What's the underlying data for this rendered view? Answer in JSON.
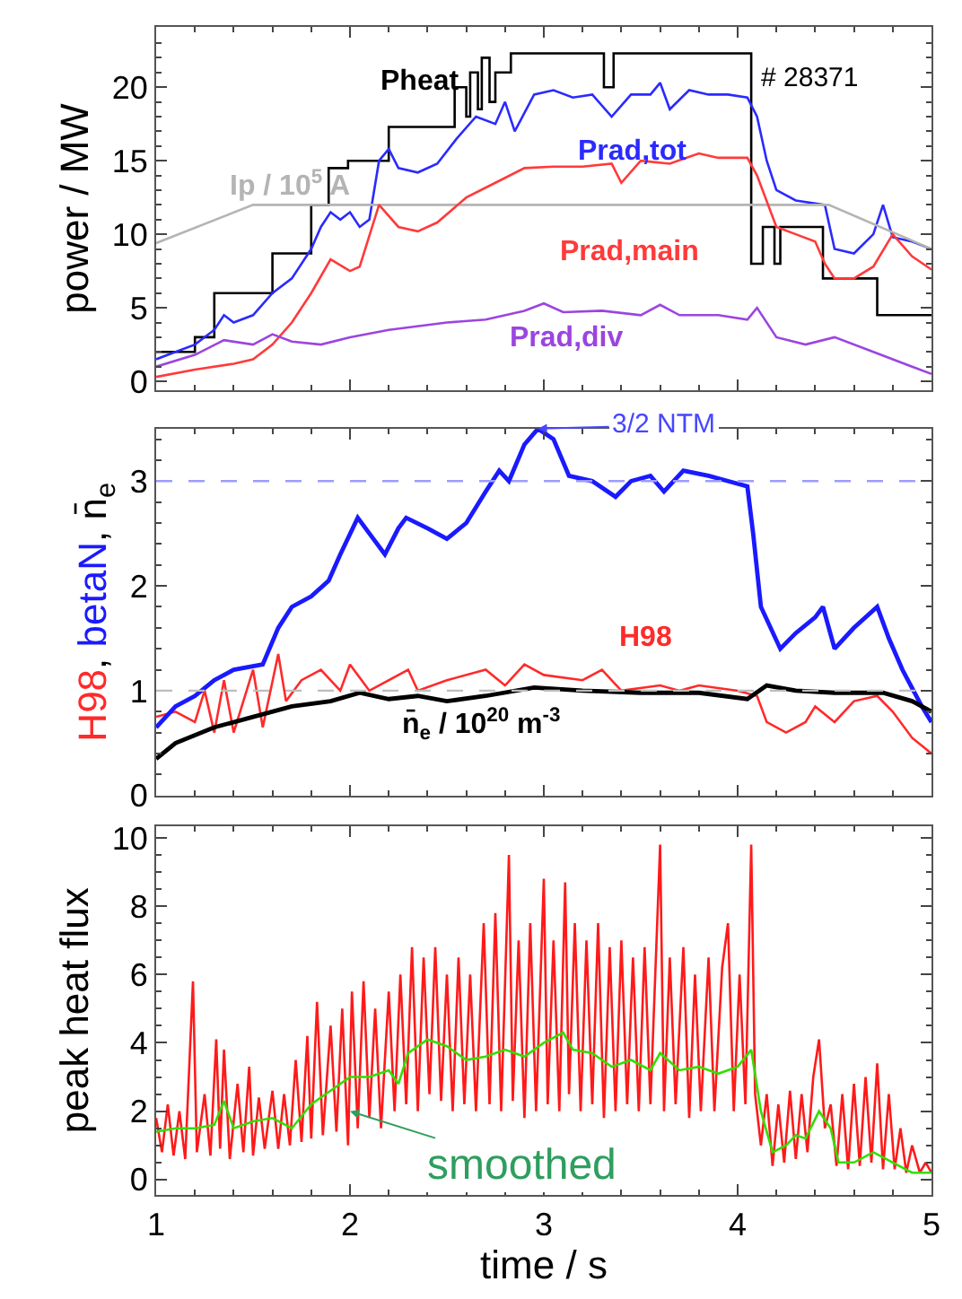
{
  "chart_data": [
    {
      "type": "line",
      "xlim": [
        1,
        5
      ],
      "xticks": [
        1,
        2,
        3,
        4,
        5
      ],
      "ylim": [
        -0.6,
        24.1
      ],
      "yticks": [
        0,
        5,
        10,
        15,
        20
      ],
      "ylabel": "power / MW",
      "tick_labels": "y",
      "annotations": [
        "# 28371"
      ],
      "series": [
        {
          "name": "Pheat",
          "type": "step",
          "color": "#000000",
          "x": [
            1.0,
            1.2,
            1.3,
            1.6,
            1.8,
            1.89,
            1.99,
            2.2,
            2.54,
            2.6,
            2.62,
            2.66,
            2.68,
            2.72,
            2.75,
            2.83,
            3.31,
            3.36,
            4.07,
            4.1,
            4.13,
            4.19,
            4.22,
            4.44,
            4.72,
            5.0
          ],
          "values": [
            2,
            3,
            6,
            8.7,
            12,
            14.5,
            15,
            17.3,
            20,
            18,
            21,
            18.5,
            22,
            19,
            21,
            22.3,
            20,
            22.3,
            8,
            8,
            10.5,
            8,
            10.5,
            7,
            4.5,
            4.5
          ]
        },
        {
          "name": "Prad,tot",
          "color": "#2a2aff",
          "x": [
            1.0,
            1.1,
            1.2,
            1.3,
            1.35,
            1.4,
            1.5,
            1.6,
            1.7,
            1.8,
            1.85,
            1.9,
            1.95,
            2.0,
            2.05,
            2.1,
            2.15,
            2.2,
            2.25,
            2.35,
            2.45,
            2.55,
            2.65,
            2.75,
            2.8,
            2.85,
            2.95,
            3.05,
            3.15,
            3.25,
            3.35,
            3.45,
            3.55,
            3.6,
            3.65,
            3.75,
            3.85,
            3.95,
            4.05,
            4.1,
            4.15,
            4.2,
            4.3,
            4.45,
            4.5,
            4.6,
            4.7,
            4.75,
            4.8,
            4.9,
            5.0
          ],
          "values": [
            1.5,
            2,
            2.5,
            3.5,
            4.5,
            4,
            4.5,
            6,
            7,
            9,
            10.5,
            11.5,
            11,
            11.5,
            10.5,
            11,
            15,
            15.8,
            14.5,
            14.2,
            14.8,
            16.5,
            18,
            17.5,
            19,
            17,
            19.5,
            19.8,
            19.3,
            19.5,
            18,
            19.5,
            19.5,
            20.3,
            18.5,
            19.8,
            19.5,
            19.5,
            19.3,
            18,
            15,
            13,
            12.3,
            12,
            9,
            8.7,
            10,
            12,
            9.8,
            9.5,
            9
          ]
        },
        {
          "name": "Ip / 10$^{5}$ A",
          "color": "#b4b4b4",
          "x": [
            1.0,
            1.5,
            4.47,
            5.0
          ],
          "values": [
            9.4,
            12,
            12,
            9
          ]
        },
        {
          "name": "Prad,main",
          "color": "#ff3a3a",
          "x": [
            1.0,
            1.2,
            1.4,
            1.5,
            1.6,
            1.7,
            1.8,
            1.9,
            2.0,
            2.05,
            2.15,
            2.25,
            2.35,
            2.45,
            2.6,
            2.75,
            2.9,
            3.05,
            3.2,
            3.35,
            3.4,
            3.5,
            3.65,
            3.8,
            3.9,
            4.05,
            4.1,
            4.2,
            4.3,
            4.4,
            4.45,
            4.5,
            4.6,
            4.7,
            4.8,
            4.9,
            5.0
          ],
          "values": [
            0.3,
            0.8,
            1.2,
            1.5,
            2.5,
            4,
            6,
            8.3,
            7.5,
            7.8,
            12,
            10.5,
            10.2,
            10.8,
            12.5,
            13.5,
            14.5,
            14.6,
            14.6,
            14.8,
            13.5,
            15,
            14.8,
            15.5,
            15.2,
            15.2,
            14,
            10.5,
            10,
            9.5,
            8,
            7,
            7,
            7.8,
            10,
            8.5,
            7.6
          ]
        },
        {
          "name": "Prad,div",
          "color": "#9b45e0",
          "x": [
            1.0,
            1.2,
            1.35,
            1.5,
            1.6,
            1.7,
            1.85,
            2.0,
            2.2,
            2.5,
            2.7,
            2.9,
            3.0,
            3.1,
            3.3,
            3.5,
            3.6,
            3.7,
            3.9,
            4.05,
            4.1,
            4.2,
            4.35,
            4.5,
            4.7,
            4.9,
            5.0
          ],
          "values": [
            1,
            1.8,
            2.8,
            2.5,
            3.2,
            2.7,
            2.5,
            3,
            3.5,
            4,
            4.2,
            4.8,
            5.3,
            4.7,
            4.8,
            4.5,
            5.2,
            4.5,
            4.5,
            4.2,
            5,
            3,
            2.5,
            3,
            2,
            1,
            0.5
          ]
        }
      ]
    },
    {
      "type": "line",
      "xlim": [
        1,
        5
      ],
      "xticks": [
        1,
        2,
        3,
        4,
        5
      ],
      "ylim": [
        0,
        3.5
      ],
      "yticks": [
        0,
        1,
        2,
        3
      ],
      "ylabel": "H98, betaN, n̄$_{e}$",
      "tick_labels": "y",
      "ref_lines": [
        {
          "axis": "y",
          "value": 3,
          "color": "#9c9cff",
          "line_style": "dashed"
        },
        {
          "axis": "y",
          "value": 1,
          "color": "#bdbdbd",
          "line_style": "dashed"
        }
      ],
      "annotations": [
        {
          "text": "3/2 NTM",
          "x": 2.97,
          "y": 3.5
        }
      ],
      "series": [
        {
          "name": "H98",
          "color": "#ff2a2a",
          "x": [
            1.0,
            1.1,
            1.2,
            1.25,
            1.3,
            1.35,
            1.4,
            1.5,
            1.55,
            1.63,
            1.67,
            1.75,
            1.85,
            1.95,
            2.0,
            2.1,
            2.3,
            2.35,
            2.5,
            2.7,
            2.8,
            2.9,
            3.0,
            3.2,
            3.3,
            3.4,
            3.6,
            3.7,
            3.8,
            4.0,
            4.1,
            4.15,
            4.25,
            4.35,
            4.4,
            4.5,
            4.6,
            4.72,
            4.8,
            4.9,
            5.0
          ],
          "values": [
            0.75,
            0.8,
            0.7,
            1.0,
            0.6,
            1.1,
            0.6,
            1.2,
            0.65,
            1.35,
            0.9,
            1.1,
            1.2,
            1.0,
            1.25,
            1.0,
            1.2,
            1.0,
            1.1,
            1.2,
            1.05,
            1.25,
            1.15,
            1.1,
            1.2,
            1.0,
            1.05,
            1.0,
            1.05,
            1.0,
            0.95,
            0.7,
            0.6,
            0.7,
            0.85,
            0.7,
            0.9,
            0.95,
            0.8,
            0.55,
            0.4
          ]
        },
        {
          "color": "#1a1aff",
          "x": [
            1.0,
            1.1,
            1.2,
            1.3,
            1.4,
            1.55,
            1.63,
            1.7,
            1.8,
            1.89,
            1.95,
            2.04,
            2.1,
            2.18,
            2.25,
            2.29,
            2.4,
            2.5,
            2.6,
            2.7,
            2.77,
            2.82,
            2.9,
            2.97,
            3.05,
            3.13,
            3.25,
            3.37,
            3.45,
            3.55,
            3.62,
            3.72,
            3.85,
            3.95,
            4.05,
            4.08,
            4.12,
            4.22,
            4.3,
            4.4,
            4.44,
            4.5,
            4.6,
            4.72,
            4.78,
            4.85,
            4.95,
            5.0
          ],
          "values": [
            0.65,
            0.85,
            0.95,
            1.1,
            1.2,
            1.25,
            1.6,
            1.8,
            1.9,
            2.05,
            2.3,
            2.65,
            2.5,
            2.3,
            2.55,
            2.65,
            2.55,
            2.45,
            2.6,
            2.9,
            3.1,
            3.0,
            3.35,
            3.5,
            3.4,
            3.05,
            3.0,
            2.85,
            3.0,
            3.05,
            2.9,
            3.1,
            3.05,
            3.0,
            2.95,
            2.5,
            1.8,
            1.4,
            1.55,
            1.7,
            1.8,
            1.4,
            1.6,
            1.8,
            1.5,
            1.2,
            0.85,
            0.7
          ]
        },
        {
          "name": "n̄$_{e}$ / 10$^{20}$ m$^{-3}$",
          "color": "#000000",
          "x": [
            1.0,
            1.1,
            1.3,
            1.5,
            1.7,
            1.9,
            2.05,
            2.2,
            2.35,
            2.5,
            2.7,
            2.95,
            3.2,
            3.5,
            3.8,
            4.05,
            4.15,
            4.3,
            4.5,
            4.75,
            4.9,
            5.0
          ],
          "values": [
            0.35,
            0.5,
            0.65,
            0.75,
            0.85,
            0.9,
            0.98,
            0.92,
            0.95,
            0.9,
            0.95,
            1.03,
            1.0,
            0.98,
            0.98,
            0.92,
            1.05,
            1.0,
            0.98,
            0.98,
            0.9,
            0.8
          ]
        }
      ]
    },
    {
      "type": "line",
      "xlim": [
        1,
        5
      ],
      "xticks": [
        1,
        2,
        3,
        4,
        5
      ],
      "ylim": [
        -0.45,
        10.35
      ],
      "yticks": [
        0,
        2,
        4,
        6,
        8,
        10
      ],
      "xlabel": "time / s",
      "ylabel": "peak heat flux",
      "annotations": [
        {
          "text": "smoothed",
          "x": 2.0,
          "y": 2.0
        }
      ],
      "series": [
        {
          "color": "#ff1a1a",
          "x": [
            1.0,
            1.03,
            1.06,
            1.09,
            1.12,
            1.15,
            1.19,
            1.21,
            1.25,
            1.28,
            1.31,
            1.33,
            1.35,
            1.38,
            1.42,
            1.45,
            1.48,
            1.5,
            1.53,
            1.56,
            1.6,
            1.63,
            1.66,
            1.69,
            1.72,
            1.75,
            1.78,
            1.8,
            1.83,
            1.86,
            1.9,
            1.93,
            1.96,
            1.99,
            2.01,
            2.04,
            2.07,
            2.1,
            2.13,
            2.16,
            2.2,
            2.23,
            2.26,
            2.29,
            2.32,
            2.35,
            2.38,
            2.41,
            2.44,
            2.47,
            2.5,
            2.53,
            2.56,
            2.59,
            2.62,
            2.65,
            2.69,
            2.72,
            2.75,
            2.78,
            2.82,
            2.84,
            2.87,
            2.9,
            2.93,
            2.96,
            3.0,
            3.02,
            3.05,
            3.08,
            3.11,
            3.13,
            3.16,
            3.19,
            3.22,
            3.25,
            3.28,
            3.31,
            3.34,
            3.37,
            3.4,
            3.43,
            3.46,
            3.49,
            3.52,
            3.55,
            3.6,
            3.62,
            3.65,
            3.68,
            3.72,
            3.75,
            3.78,
            3.81,
            3.85,
            3.88,
            3.92,
            3.95,
            3.98,
            4.01,
            4.04,
            4.07,
            4.09,
            4.12,
            4.15,
            4.18,
            4.21,
            4.24,
            4.27,
            4.3,
            4.33,
            4.36,
            4.39,
            4.42,
            4.45,
            4.48,
            4.51,
            4.54,
            4.57,
            4.6,
            4.63,
            4.66,
            4.69,
            4.72,
            4.75,
            4.78,
            4.81,
            4.84,
            4.87,
            4.9,
            4.94,
            4.97,
            5.0
          ],
          "values": [
            1.8,
            0.8,
            2.2,
            0.7,
            2.0,
            0.6,
            5.8,
            0.8,
            2.5,
            0.7,
            4.1,
            0.9,
            3.8,
            0.6,
            2.8,
            0.8,
            3.3,
            0.7,
            2.4,
            0.9,
            2.6,
            0.9,
            2.5,
            1.0,
            3.5,
            1.1,
            4.2,
            1.2,
            5.2,
            1.3,
            4.5,
            1.4,
            5.0,
            1.0,
            5.5,
            1.5,
            5.8,
            1.8,
            5.0,
            1.5,
            5.5,
            2.0,
            6.0,
            2.2,
            6.8,
            2.0,
            6.5,
            2.5,
            6.8,
            2.3,
            6.0,
            2.0,
            6.5,
            2.2,
            6.0,
            2.0,
            7.5,
            2.2,
            7.8,
            2.0,
            9.5,
            2.3,
            7.0,
            1.8,
            7.5,
            2.0,
            8.8,
            2.2,
            7.0,
            2.0,
            8.7,
            2.5,
            7.5,
            2.0,
            7.0,
            2.2,
            7.5,
            1.8,
            6.8,
            2.0,
            7.0,
            2.2,
            6.5,
            2.0,
            6.8,
            2.2,
            9.8,
            2.0,
            6.5,
            2.2,
            6.8,
            1.8,
            6.0,
            2.0,
            6.5,
            2.0,
            6.2,
            7.5,
            2.0,
            6.0,
            2.2,
            9.8,
            2.5,
            1.0,
            2.5,
            0.4,
            2.2,
            0.5,
            2.6,
            0.6,
            2.5,
            0.8,
            3.0,
            4.1,
            1.5,
            2.2,
            0.4,
            2.5,
            0.3,
            2.8,
            0.4,
            3.0,
            0.5,
            3.4,
            0.3,
            2.5,
            0.3,
            1.5,
            0.2,
            1.0,
            0.2,
            0.5,
            0.2
          ]
        },
        {
          "color": "#33dd00",
          "x": [
            1.0,
            1.1,
            1.2,
            1.3,
            1.35,
            1.4,
            1.5,
            1.6,
            1.7,
            1.8,
            1.9,
            2.0,
            2.1,
            2.2,
            2.25,
            2.3,
            2.4,
            2.5,
            2.6,
            2.7,
            2.8,
            2.9,
            3.0,
            3.1,
            3.15,
            3.25,
            3.35,
            3.45,
            3.55,
            3.6,
            3.7,
            3.8,
            3.9,
            4.0,
            4.07,
            4.12,
            4.18,
            4.25,
            4.3,
            4.35,
            4.42,
            4.48,
            4.52,
            4.6,
            4.7,
            4.8,
            4.9,
            5.0
          ],
          "values": [
            1.4,
            1.5,
            1.5,
            1.6,
            2.3,
            1.5,
            1.7,
            1.8,
            1.5,
            2.2,
            2.6,
            3.0,
            3.0,
            3.2,
            2.8,
            3.7,
            4.1,
            3.9,
            3.5,
            3.6,
            3.8,
            3.6,
            4.0,
            4.3,
            3.8,
            3.7,
            3.3,
            3.5,
            3.2,
            3.7,
            3.2,
            3.3,
            3.1,
            3.3,
            3.8,
            2.0,
            0.8,
            1.0,
            1.3,
            1.2,
            2.0,
            1.5,
            0.5,
            0.5,
            0.8,
            0.5,
            0.2,
            0.2
          ]
        }
      ]
    }
  ]
}
